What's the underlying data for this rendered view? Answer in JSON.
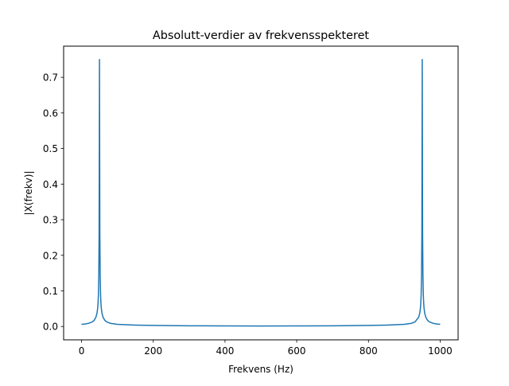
{
  "chart_data": {
    "type": "line",
    "title": "Absolutt-verdier av frekvensspekteret",
    "xlabel": "Frekvens (Hz)",
    "ylabel": "|X(frekv)|",
    "xlim": [
      -50,
      1050
    ],
    "ylim": [
      -0.0375,
      0.7875
    ],
    "xticks": [
      0,
      200,
      400,
      600,
      800,
      1000
    ],
    "xtick_labels": [
      "0",
      "200",
      "400",
      "600",
      "800",
      "1000"
    ],
    "yticks": [
      0.0,
      0.1,
      0.2,
      0.3,
      0.4,
      0.5,
      0.6,
      0.7
    ],
    "ytick_labels": [
      "0.0",
      "0.1",
      "0.2",
      "0.3",
      "0.4",
      "0.5",
      "0.6",
      "0.7"
    ],
    "grid": false,
    "series": [
      {
        "color": "#1f77b4",
        "x": [
          0,
          10,
          20,
          30,
          35,
          40,
          43,
          45,
          46,
          47,
          48,
          49,
          50,
          51,
          52,
          53,
          54,
          55,
          57,
          60,
          65,
          70,
          80,
          100,
          150,
          200,
          300,
          400,
          500,
          600,
          700,
          800,
          850,
          900,
          920,
          930,
          940,
          943,
          945,
          946,
          947,
          948,
          949,
          950,
          951,
          952,
          953,
          954,
          955,
          957,
          960,
          965,
          970,
          980,
          990,
          1000
        ],
        "y": [
          0.006,
          0.007,
          0.009,
          0.013,
          0.017,
          0.026,
          0.037,
          0.052,
          0.066,
          0.09,
          0.14,
          0.26,
          0.75,
          0.26,
          0.14,
          0.09,
          0.066,
          0.052,
          0.037,
          0.026,
          0.017,
          0.013,
          0.009,
          0.006,
          0.004,
          0.003,
          0.002,
          0.0015,
          0.0013,
          0.0015,
          0.002,
          0.003,
          0.004,
          0.006,
          0.009,
          0.013,
          0.026,
          0.037,
          0.052,
          0.066,
          0.09,
          0.14,
          0.26,
          0.75,
          0.26,
          0.14,
          0.09,
          0.066,
          0.052,
          0.037,
          0.026,
          0.017,
          0.013,
          0.009,
          0.007,
          0.006
        ]
      }
    ]
  }
}
